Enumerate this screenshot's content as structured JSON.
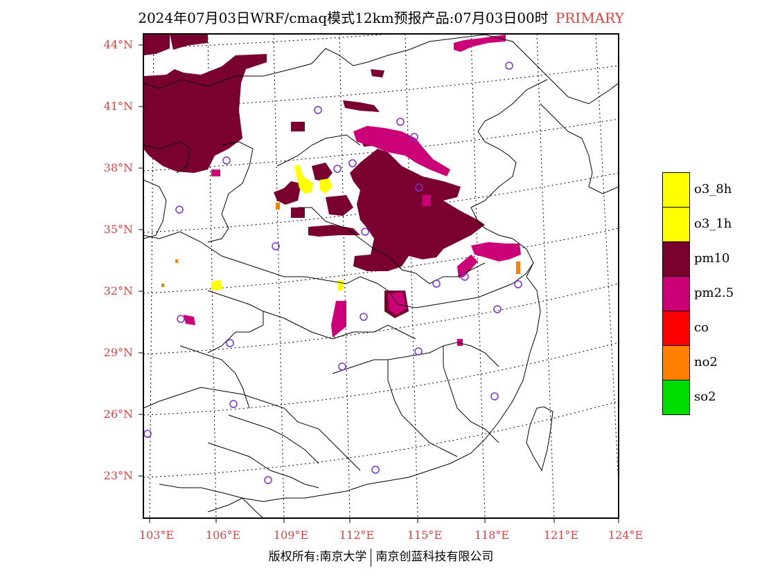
{
  "title": {
    "main": "2024年07月03日WRF/cmaq模式12km预报产品:07月03日00时",
    "tag": "PRIMARY"
  },
  "axes": {
    "lat_labels": [
      "44°N",
      "41°N",
      "38°N",
      "35°N",
      "32°N",
      "29°N",
      "26°N",
      "23°N"
    ],
    "lon_labels": [
      "103°E",
      "106°E",
      "109°E",
      "112°E",
      "115°E",
      "118°E",
      "121°E",
      "124°E"
    ]
  },
  "legend": [
    {
      "label": "o3_8h",
      "color": "#ffff00"
    },
    {
      "label": "o3_1h",
      "color": "#ffff00"
    },
    {
      "label": "pm10",
      "color": "#7a0030"
    },
    {
      "label": "pm2.5",
      "color": "#cc0077"
    },
    {
      "label": "co",
      "color": "#ff0000"
    },
    {
      "label": "no2",
      "color": "#ff8000"
    },
    {
      "label": "so2",
      "color": "#00dd00"
    }
  ],
  "footer": {
    "left": "版权所有:南京大学",
    "right": "南京创蓝科技有限公司"
  },
  "colors": {
    "label": "#e04040",
    "pm10": "#7a0030",
    "pm25": "#cc0077",
    "o3": "#ffff00",
    "no2": "#ff8000",
    "station": "#7b2fd4"
  }
}
